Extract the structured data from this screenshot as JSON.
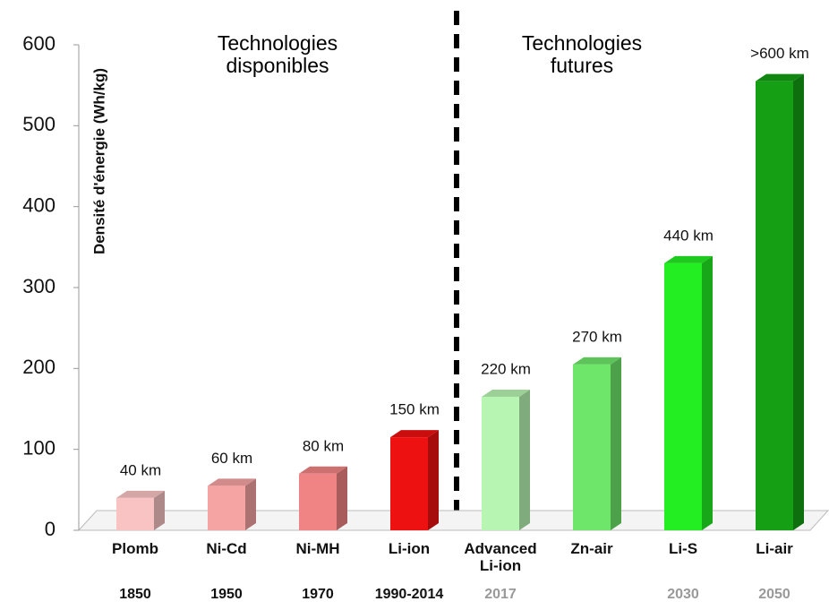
{
  "chart_data": {
    "type": "bar3d",
    "ylabel": "Densité d'énergie (Wh/kg)",
    "annotations": [
      "Technologies disponibles",
      "Technologies futures"
    ],
    "categories": [
      "Plomb",
      "Ni-Cd",
      "Ni-MH",
      "Li-ion",
      "Advanced Li-ion",
      "Zn-air",
      "Li-S",
      "Li-air"
    ],
    "years": [
      "1850",
      "1950",
      "1970",
      "1990-2014",
      "2017",
      null,
      "2030",
      "2050"
    ],
    "year_colors": [
      "#111111",
      "#111111",
      "#111111",
      "#111111",
      "#999999",
      "#999999",
      "#999999",
      "#999999"
    ],
    "values": [
      40,
      55,
      70,
      115,
      165,
      205,
      330,
      555
    ],
    "range_labels": [
      "40 km",
      "60 km",
      "80 km",
      "150 km",
      "220 km",
      "270 km",
      "440 km",
      ">600 km"
    ],
    "colors": [
      "#f9c3c3",
      "#f6a3a3",
      "#f08484",
      "#ee1111",
      "#b7f5b2",
      "#6ee66a",
      "#22ee22",
      "#149f14"
    ],
    "ylim": [
      0,
      600
    ],
    "yticks": [
      0,
      100,
      200,
      300,
      400,
      500,
      600
    ]
  }
}
